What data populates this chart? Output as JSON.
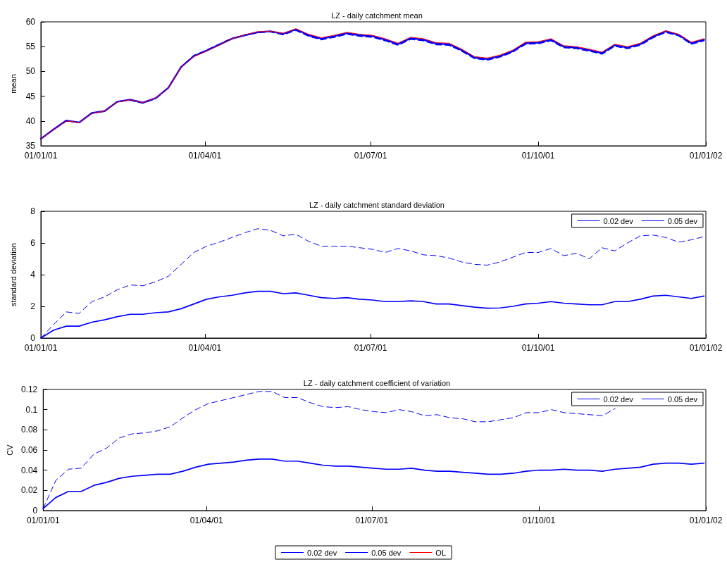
{
  "chart_data": [
    {
      "type": "line",
      "title": "LZ - daily catchment mean",
      "ylabel": "mean",
      "legend": "bottom",
      "grid": false,
      "x": [
        "2001-01-01",
        "2001-01-08",
        "2001-01-15",
        "2001-01-22",
        "2001-01-29",
        "2001-02-05",
        "2001-02-12",
        "2001-02-19",
        "2001-02-26",
        "2001-03-05",
        "2001-03-12",
        "2001-03-19",
        "2001-03-26",
        "2001-04-02",
        "2001-04-09",
        "2001-04-16",
        "2001-04-23",
        "2001-04-30",
        "2001-05-07",
        "2001-05-14",
        "2001-05-21",
        "2001-05-28",
        "2001-06-04",
        "2001-06-11",
        "2001-06-18",
        "2001-06-25",
        "2001-07-02",
        "2001-07-09",
        "2001-07-16",
        "2001-07-23",
        "2001-07-30",
        "2001-08-06",
        "2001-08-13",
        "2001-08-20",
        "2001-08-27",
        "2001-09-03",
        "2001-09-10",
        "2001-09-17",
        "2001-09-24",
        "2001-10-01",
        "2001-10-08",
        "2001-10-15",
        "2001-10-22",
        "2001-10-29",
        "2001-11-05",
        "2001-11-12",
        "2001-11-19",
        "2001-11-26",
        "2001-12-03",
        "2001-12-10",
        "2001-12-17",
        "2001-12-24",
        "2001-12-31"
      ],
      "xlim": [
        "2001-01-01",
        "2002-01-01"
      ],
      "xticks": [
        {
          "value": "2001-01-01",
          "label": "01/01/01"
        },
        {
          "value": "2001-04-01",
          "label": "01/04/01"
        },
        {
          "value": "2001-07-01",
          "label": "01/07/01"
        },
        {
          "value": "2001-10-01",
          "label": "01/10/01"
        },
        {
          "value": "2002-01-01",
          "label": "01/01/02"
        }
      ],
      "ylim": [
        35,
        60
      ],
      "yticks": [
        35,
        40,
        45,
        50,
        55,
        60
      ],
      "series": [
        {
          "name": "0.02 dev",
          "color": "#0000ff",
          "line_style": "solid",
          "values": [
            36.4,
            38.3,
            40.1,
            39.7,
            41.6,
            42.0,
            43.9,
            44.3,
            43.7,
            44.6,
            46.7,
            50.9,
            53.1,
            54.2,
            55.4,
            56.6,
            57.3,
            57.9,
            58.1,
            57.6,
            58.5,
            57.3,
            56.6,
            57.1,
            57.7,
            57.3,
            57.1,
            56.4,
            55.5,
            56.7,
            56.4,
            55.6,
            55.5,
            54.3,
            52.8,
            52.5,
            53.1,
            54.1,
            55.7,
            55.8,
            56.4,
            55.0,
            54.8,
            54.3,
            53.7,
            55.3,
            54.8,
            55.5,
            57.0,
            58.1,
            57.4,
            55.7,
            56.4
          ]
        },
        {
          "name": "0.05 dev",
          "color": "#0000ff",
          "line_style": "dashed",
          "values": [
            36.4,
            38.3,
            40.0,
            39.7,
            41.6,
            42.0,
            43.9,
            44.2,
            43.6,
            44.5,
            46.7,
            50.9,
            53.2,
            54.3,
            55.5,
            56.7,
            57.3,
            57.8,
            58.0,
            57.4,
            58.3,
            57.1,
            56.4,
            56.9,
            57.5,
            57.1,
            56.9,
            56.2,
            55.3,
            56.5,
            56.2,
            55.4,
            55.3,
            54.1,
            52.6,
            52.3,
            52.9,
            53.9,
            55.5,
            55.6,
            56.2,
            54.8,
            54.6,
            54.1,
            53.5,
            55.1,
            54.6,
            55.3,
            56.8,
            57.9,
            57.2,
            55.5,
            56.2
          ]
        },
        {
          "name": "OL",
          "color": "#ff0000",
          "line_style": "solid",
          "values": [
            36.4,
            38.2,
            40.0,
            39.7,
            41.5,
            42.0,
            43.8,
            44.3,
            43.7,
            44.6,
            46.6,
            50.8,
            53.0,
            54.1,
            55.3,
            56.6,
            57.4,
            58.0,
            58.1,
            57.7,
            58.6,
            57.5,
            56.8,
            57.3,
            57.9,
            57.5,
            57.3,
            56.6,
            55.7,
            56.9,
            56.6,
            55.8,
            55.7,
            54.5,
            53.0,
            52.7,
            53.3,
            54.3,
            55.9,
            56.0,
            56.6,
            55.2,
            55.0,
            54.5,
            53.9,
            55.5,
            55.0,
            55.7,
            57.2,
            58.2,
            57.5,
            55.9,
            56.6
          ]
        }
      ]
    },
    {
      "type": "line",
      "title": "LZ - daily catchment standard deviation",
      "ylabel": "standard deviation",
      "legend": "top right",
      "grid": false,
      "x": [
        "2001-01-01",
        "2001-01-08",
        "2001-01-15",
        "2001-01-22",
        "2001-01-29",
        "2001-02-05",
        "2001-02-12",
        "2001-02-19",
        "2001-02-26",
        "2001-03-05",
        "2001-03-12",
        "2001-03-19",
        "2001-03-26",
        "2001-04-02",
        "2001-04-09",
        "2001-04-16",
        "2001-04-23",
        "2001-04-30",
        "2001-05-07",
        "2001-05-14",
        "2001-05-21",
        "2001-05-28",
        "2001-06-04",
        "2001-06-11",
        "2001-06-18",
        "2001-06-25",
        "2001-07-02",
        "2001-07-09",
        "2001-07-16",
        "2001-07-23",
        "2001-07-30",
        "2001-08-06",
        "2001-08-13",
        "2001-08-20",
        "2001-08-27",
        "2001-09-03",
        "2001-09-10",
        "2001-09-17",
        "2001-09-24",
        "2001-10-01",
        "2001-10-08",
        "2001-10-15",
        "2001-10-22",
        "2001-10-29",
        "2001-11-05",
        "2001-11-12",
        "2001-11-19",
        "2001-11-26",
        "2001-12-03",
        "2001-12-10",
        "2001-12-17",
        "2001-12-24",
        "2001-12-31"
      ],
      "xlim": [
        "2001-01-01",
        "2002-01-01"
      ],
      "xticks": [
        {
          "value": "2001-01-01",
          "label": "01/01/01"
        },
        {
          "value": "2001-04-01",
          "label": "01/04/01"
        },
        {
          "value": "2001-07-01",
          "label": "01/07/01"
        },
        {
          "value": "2001-10-01",
          "label": "01/10/01"
        },
        {
          "value": "2002-01-01",
          "label": "01/01/02"
        }
      ],
      "ylim": [
        0,
        8
      ],
      "yticks": [
        0,
        2,
        4,
        6,
        8
      ],
      "series": [
        {
          "name": "0.02 dev",
          "color": "#0000ff",
          "line_style": "solid",
          "values": [
            0,
            0.5,
            0.75,
            0.75,
            1.0,
            1.15,
            1.35,
            1.5,
            1.5,
            1.6,
            1.65,
            1.85,
            2.15,
            2.45,
            2.6,
            2.7,
            2.85,
            2.95,
            2.95,
            2.8,
            2.85,
            2.7,
            2.55,
            2.5,
            2.55,
            2.45,
            2.4,
            2.3,
            2.3,
            2.35,
            2.3,
            2.15,
            2.15,
            2.05,
            1.95,
            1.88,
            1.9,
            2.0,
            2.15,
            2.2,
            2.3,
            2.2,
            2.15,
            2.1,
            2.1,
            2.3,
            2.3,
            2.45,
            2.65,
            2.7,
            2.6,
            2.5,
            2.65
          ]
        },
        {
          "name": "0.05 dev",
          "color": "#0000ff",
          "line_style": "dashed",
          "values": [
            0,
            0.85,
            1.65,
            1.55,
            2.3,
            2.6,
            3.05,
            3.35,
            3.3,
            3.55,
            3.9,
            4.65,
            5.4,
            5.8,
            6.05,
            6.35,
            6.65,
            6.9,
            6.8,
            6.45,
            6.55,
            6.1,
            5.8,
            5.8,
            5.8,
            5.7,
            5.6,
            5.4,
            5.65,
            5.5,
            5.25,
            5.2,
            5.05,
            4.8,
            4.65,
            4.6,
            4.8,
            5.1,
            5.4,
            5.4,
            5.65,
            5.2,
            5.35,
            5.0,
            5.7,
            5.5,
            6.0,
            6.45,
            6.5,
            6.35,
            6.05,
            6.2,
            6.4
          ]
        }
      ]
    },
    {
      "type": "line",
      "title": "LZ - daily catchment coefficient of variation",
      "ylabel": "CV",
      "legend": "top right",
      "grid": false,
      "x": [
        "2001-01-01",
        "2001-01-08",
        "2001-01-15",
        "2001-01-22",
        "2001-01-29",
        "2001-02-05",
        "2001-02-12",
        "2001-02-19",
        "2001-02-26",
        "2001-03-05",
        "2001-03-12",
        "2001-03-19",
        "2001-03-26",
        "2001-04-02",
        "2001-04-09",
        "2001-04-16",
        "2001-04-23",
        "2001-04-30",
        "2001-05-07",
        "2001-05-14",
        "2001-05-21",
        "2001-05-28",
        "2001-06-04",
        "2001-06-11",
        "2001-06-18",
        "2001-06-25",
        "2001-07-02",
        "2001-07-09",
        "2001-07-16",
        "2001-07-23",
        "2001-07-30",
        "2001-08-06",
        "2001-08-13",
        "2001-08-20",
        "2001-08-27",
        "2001-09-03",
        "2001-09-10",
        "2001-09-17",
        "2001-09-24",
        "2001-10-01",
        "2001-10-08",
        "2001-10-15",
        "2001-10-22",
        "2001-10-29",
        "2001-11-05",
        "2001-11-12",
        "2001-11-19",
        "2001-11-26",
        "2001-12-03",
        "2001-12-10",
        "2001-12-17",
        "2001-12-24",
        "2001-12-31"
      ],
      "xlim": [
        "2001-01-01",
        "2002-01-01"
      ],
      "xticks": [
        {
          "value": "2001-01-01",
          "label": "01/01/01"
        },
        {
          "value": "2001-04-01",
          "label": "01/04/01"
        },
        {
          "value": "2001-07-01",
          "label": "01/07/01"
        },
        {
          "value": "2001-10-01",
          "label": "01/10/01"
        },
        {
          "value": "2002-01-01",
          "label": "01/01/02"
        }
      ],
      "ylim": [
        0,
        0.12
      ],
      "yticks": [
        0,
        0.02,
        0.04,
        0.06,
        0.08,
        0.1,
        0.12
      ],
      "series": [
        {
          "name": "0.02 dev",
          "color": "#0000ff",
          "line_style": "solid",
          "values": [
            0.002,
            0.013,
            0.019,
            0.019,
            0.025,
            0.028,
            0.032,
            0.034,
            0.035,
            0.036,
            0.036,
            0.039,
            0.043,
            0.046,
            0.047,
            0.048,
            0.05,
            0.051,
            0.051,
            0.049,
            0.049,
            0.047,
            0.045,
            0.044,
            0.044,
            0.043,
            0.042,
            0.041,
            0.041,
            0.042,
            0.04,
            0.039,
            0.039,
            0.038,
            0.037,
            0.036,
            0.036,
            0.037,
            0.039,
            0.04,
            0.04,
            0.041,
            0.04,
            0.04,
            0.039,
            0.041,
            0.042,
            0.043,
            0.046,
            0.047,
            0.047,
            0.046,
            0.047
          ]
        },
        {
          "name": "0.05 dev",
          "color": "#0000ff",
          "line_style": "dashed",
          "values": [
            0.002,
            0.03,
            0.041,
            0.042,
            0.056,
            0.062,
            0.072,
            0.076,
            0.077,
            0.079,
            0.083,
            0.092,
            0.1,
            0.106,
            0.109,
            0.112,
            0.115,
            0.118,
            0.118,
            0.112,
            0.112,
            0.107,
            0.103,
            0.102,
            0.103,
            0.1,
            0.098,
            0.097,
            0.1,
            0.098,
            0.094,
            0.095,
            0.092,
            0.091,
            0.088,
            0.088,
            0.09,
            0.092,
            0.097,
            0.097,
            0.1,
            0.097,
            0.096,
            0.095,
            0.094,
            0.101,
            null,
            null,
            null,
            null,
            null,
            null,
            null
          ]
        }
      ]
    }
  ]
}
